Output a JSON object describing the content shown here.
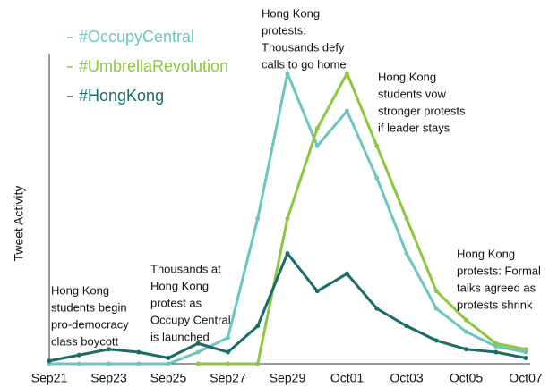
{
  "chart_data": {
    "type": "line",
    "ylabel": "Tweet Activity",
    "categories": [
      "Sep21",
      null,
      "Sep23",
      null,
      "Sep25",
      null,
      "Sep27",
      null,
      "Sep29",
      null,
      "Oct01",
      null,
      "Oct03",
      null,
      "Oct05",
      null,
      "Oct07"
    ],
    "ylim": [
      0,
      100
    ],
    "series": [
      {
        "name": "#OccupyCentral",
        "color": "#6cc5c0",
        "values": [
          0,
          0,
          0,
          0,
          0,
          4,
          9,
          50,
          100,
          75,
          87,
          64,
          38,
          19,
          11,
          6,
          4
        ]
      },
      {
        "name": "#UmbrellaRevolution",
        "color": "#8dc63f",
        "values": [
          null,
          null,
          null,
          null,
          null,
          0,
          0,
          0,
          50,
          81,
          100,
          75,
          50,
          25,
          15,
          7,
          5
        ]
      },
      {
        "name": "#HongKong",
        "color": "#1a6b6b",
        "values": [
          1,
          3,
          5,
          4,
          2,
          7,
          4,
          13,
          38,
          25,
          31,
          19,
          13,
          8,
          5,
          4,
          2
        ]
      }
    ],
    "annotations": [
      [
        "Hong Kong",
        "students begin",
        "pro-democracy",
        "class boycott"
      ],
      [
        "Thousands at",
        "Hong Kong",
        "protest as",
        "Occupy Central",
        "is launched"
      ],
      [
        "Hong Kong",
        "protests:",
        "Thousands defy",
        "calls to go home"
      ],
      [
        "Hong Kong",
        "students vow",
        "stronger protests",
        "if leader stays"
      ],
      [
        "Hong Kong",
        "protests: Formal",
        "talks agreed as",
        "protests shrink"
      ]
    ]
  }
}
